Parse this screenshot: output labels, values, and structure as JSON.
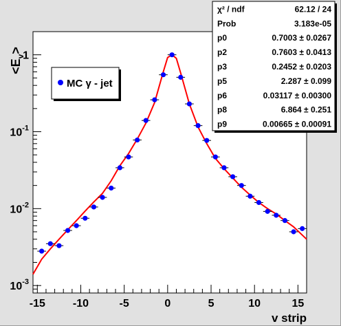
{
  "chart_data": {
    "type": "scatter",
    "xlabel": "v strip",
    "ylabel_main": "<E",
    "ylabel_sub": "v",
    "ylabel_close": ">",
    "xlim": [
      -15.5,
      16
    ],
    "ylim": [
      0.0008,
      2
    ],
    "yscale": "log",
    "grid": false,
    "x_ticks": [
      -15,
      -10,
      -5,
      0,
      5,
      10,
      15
    ],
    "x_tick_labels": [
      "-15",
      "-10",
      "-5",
      "0",
      "5",
      "10",
      "15"
    ],
    "y_ticks": [
      0.001,
      0.01,
      0.1,
      1
    ],
    "y_tick_labels": [
      {
        "base": "10",
        "exp": "-3"
      },
      {
        "base": "10",
        "exp": "-2"
      },
      {
        "base": "10",
        "exp": "-1"
      },
      {
        "base": "1",
        "exp": ""
      }
    ],
    "legend": {
      "label": "MC γ - jet",
      "position": "top-left",
      "marker_color": "#0000ff"
    },
    "series": [
      {
        "name": "MC γ - jet",
        "color": "#0000ff",
        "x": [
          -14.5,
          -13.5,
          -12.5,
          -11.5,
          -10.5,
          -9.5,
          -8.5,
          -7.5,
          -6.5,
          -5.5,
          -4.5,
          -3.5,
          -2.5,
          -1.5,
          -0.5,
          0.5,
          1.5,
          2.5,
          3.5,
          4.5,
          5.5,
          6.5,
          7.5,
          8.5,
          9.5,
          10.5,
          11.5,
          12.5,
          13.5,
          14.5,
          15.5
        ],
        "y": [
          0.0028,
          0.0035,
          0.0033,
          0.0052,
          0.006,
          0.0075,
          0.0105,
          0.014,
          0.0185,
          0.034,
          0.047,
          0.078,
          0.14,
          0.26,
          0.55,
          1.0,
          0.51,
          0.23,
          0.12,
          0.077,
          0.047,
          0.034,
          0.026,
          0.02,
          0.0145,
          0.012,
          0.0092,
          0.0082,
          0.007,
          0.005,
          0.0055
        ]
      }
    ],
    "fit": {
      "color": "#ff0000",
      "x": [
        -15.5,
        -14.5,
        -13.5,
        -12.5,
        -11.5,
        -10.5,
        -9.5,
        -8.5,
        -7.5,
        -6.5,
        -5.5,
        -4.5,
        -3.5,
        -2.5,
        -1.5,
        -0.5,
        0,
        0.5,
        1,
        1.5,
        2.5,
        3.5,
        4.5,
        5.5,
        6.5,
        7.5,
        8.5,
        9.5,
        10.5,
        11.5,
        12.5,
        13.5,
        14.5,
        16
      ],
      "y": [
        0.0014,
        0.0022,
        0.003,
        0.004,
        0.0053,
        0.007,
        0.0093,
        0.0122,
        0.0158,
        0.023,
        0.036,
        0.052,
        0.08,
        0.13,
        0.24,
        0.6,
        0.92,
        1.0,
        0.9,
        0.58,
        0.23,
        0.115,
        0.07,
        0.045,
        0.033,
        0.025,
        0.019,
        0.015,
        0.012,
        0.01,
        0.0085,
        0.007,
        0.0058,
        0.004
      ]
    }
  },
  "stats_box": [
    {
      "label": "χ² / ndf",
      "value": "62.12 / 24"
    },
    {
      "label": "Prob",
      "value": "3.183e-05"
    },
    {
      "label": "p0",
      "value": "0.7003 ± 0.0267"
    },
    {
      "label": "p2",
      "value": "0.7603 ± 0.0413"
    },
    {
      "label": "p3",
      "value": "0.2452 ± 0.0203"
    },
    {
      "label": "p5",
      "value": "2.287 ± 0.099"
    },
    {
      "label": "p6",
      "value": "0.03117 ± 0.00300"
    },
    {
      "label": "p8",
      "value": "6.864 ± 0.251"
    },
    {
      "label": "p9",
      "value": "0.00665 ± 0.00091"
    }
  ]
}
